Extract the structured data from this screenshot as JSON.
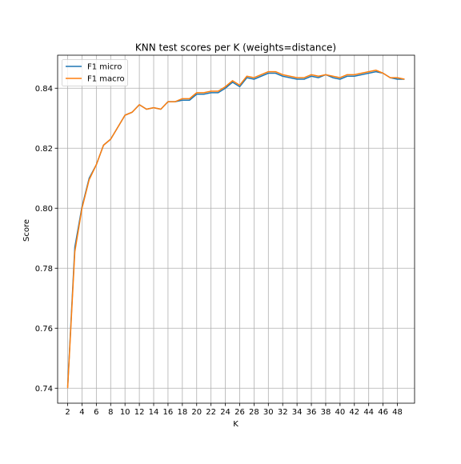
{
  "chart_data": {
    "type": "line",
    "title": "KNN test scores per K (weights=distance)",
    "xlabel": "K",
    "ylabel": "Score",
    "xlim": [
      0.6,
      50.4
    ],
    "ylim": [
      0.735,
      0.851
    ],
    "xticks": [
      2,
      4,
      6,
      8,
      10,
      12,
      14,
      16,
      18,
      20,
      22,
      24,
      26,
      28,
      30,
      32,
      34,
      36,
      38,
      40,
      42,
      44,
      46,
      48
    ],
    "yticks": [
      0.74,
      0.76,
      0.78,
      0.8,
      0.82,
      0.84
    ],
    "ytick_labels": [
      "0.74",
      "0.76",
      "0.78",
      "0.80",
      "0.82",
      "0.84"
    ],
    "grid": true,
    "legend_position": "upper-left",
    "x": [
      2,
      3,
      4,
      5,
      6,
      7,
      8,
      9,
      10,
      11,
      12,
      13,
      14,
      15,
      16,
      17,
      18,
      19,
      20,
      21,
      22,
      23,
      24,
      25,
      26,
      27,
      28,
      29,
      30,
      31,
      32,
      33,
      34,
      35,
      36,
      37,
      38,
      39,
      40,
      41,
      42,
      43,
      44,
      45,
      46,
      47,
      48,
      49
    ],
    "series": [
      {
        "name": "F1 micro",
        "color": "#1f77b4",
        "values": [
          0.7405,
          0.787,
          0.8005,
          0.81,
          0.8145,
          0.821,
          0.823,
          0.827,
          0.831,
          0.832,
          0.8345,
          0.833,
          0.8335,
          0.833,
          0.8355,
          0.8355,
          0.836,
          0.836,
          0.838,
          0.838,
          0.8385,
          0.8385,
          0.84,
          0.842,
          0.8405,
          0.8435,
          0.843,
          0.844,
          0.845,
          0.845,
          0.844,
          0.8435,
          0.843,
          0.843,
          0.844,
          0.8435,
          0.8445,
          0.8435,
          0.843,
          0.844,
          0.844,
          0.8445,
          0.845,
          0.8455,
          0.845,
          0.8435,
          0.843,
          0.843
        ]
      },
      {
        "name": "F1 macro",
        "color": "#ff7f0e",
        "values": [
          0.74,
          0.7855,
          0.8,
          0.8095,
          0.8145,
          0.821,
          0.823,
          0.827,
          0.831,
          0.832,
          0.8345,
          0.833,
          0.8335,
          0.833,
          0.8355,
          0.8355,
          0.8365,
          0.8365,
          0.8385,
          0.8385,
          0.839,
          0.839,
          0.8405,
          0.8425,
          0.841,
          0.844,
          0.8435,
          0.8445,
          0.8455,
          0.8455,
          0.8445,
          0.844,
          0.8435,
          0.8435,
          0.8445,
          0.844,
          0.8445,
          0.844,
          0.8435,
          0.8445,
          0.8445,
          0.845,
          0.8455,
          0.846,
          0.845,
          0.8435,
          0.8435,
          0.843
        ]
      }
    ]
  }
}
